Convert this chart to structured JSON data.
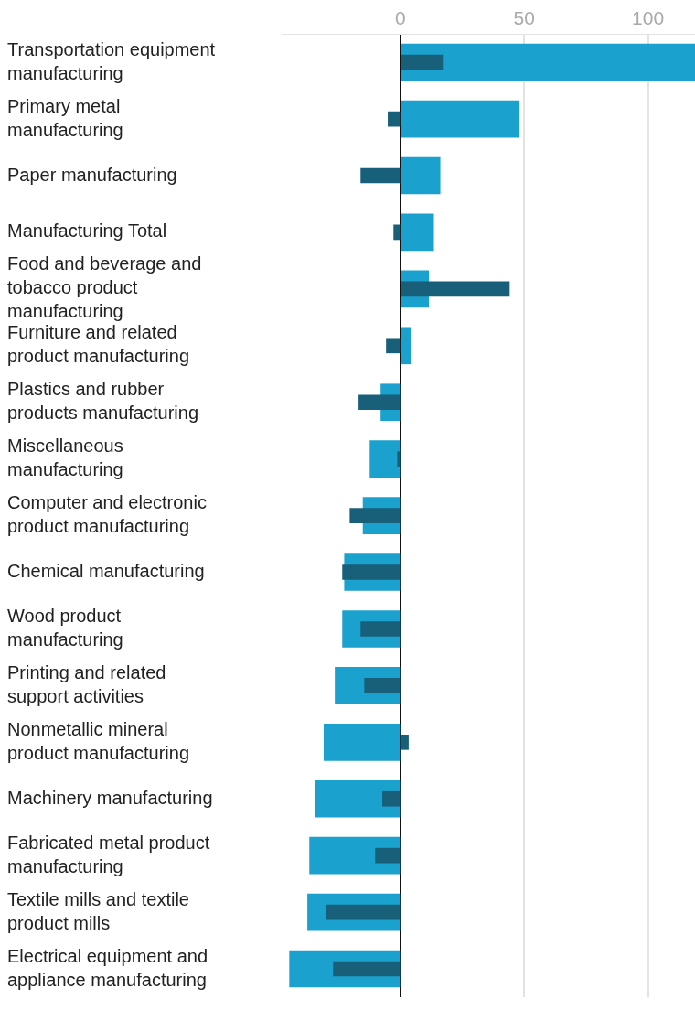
{
  "chart_data": {
    "type": "bar",
    "orientation": "horizontal",
    "categories": [
      "Transportation equipment manufacturing",
      "Primary metal manufacturing",
      "Paper manufacturing",
      "Manufacturing Total",
      "Food and beverage and tobacco product manufacturing",
      "Furniture and related product manufacturing",
      "Plastics and rubber products manufacturing",
      "Miscellaneous manufacturing",
      "Computer and electronic product manufacturing",
      "Chemical manufacturing",
      "Wood product manufacturing",
      "Printing and related support activities",
      "Nonmetallic mineral product manufacturing",
      "Machinery manufacturing",
      "Fabricated metal product manufacturing",
      "Textile mills and textile product mills",
      "Electrical equipment and appliance manufacturing"
    ],
    "series": [
      {
        "color": "#1ba1cd",
        "values": [
          119,
          48,
          16,
          13.4,
          11.4,
          4,
          -7.9,
          -12.3,
          -15.1,
          -22.6,
          -23.4,
          -26.4,
          -30.9,
          -34.5,
          -36.7,
          -37.5,
          -44.8
        ]
      },
      {
        "color": "#185f79",
        "values": [
          17,
          -5,
          -16,
          -2.7,
          44,
          -5.7,
          -16.8,
          -1.2,
          -20.4,
          -23.4,
          -16,
          -14.5,
          3.2,
          -7.2,
          -10.1,
          -30,
          -27.1
        ]
      }
    ],
    "xlim": [
      -48,
      119
    ],
    "xticks": [
      0,
      50,
      100
    ],
    "grid": "x",
    "legend": false
  }
}
